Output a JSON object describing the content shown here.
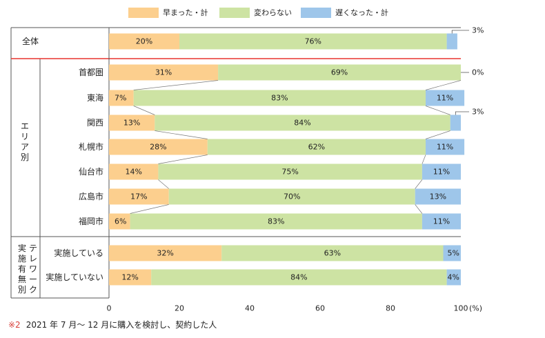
{
  "chart_data": {
    "type": "bar",
    "orientation": "horizontal",
    "stacked": true,
    "legend": {
      "placement": "top",
      "items": [
        {
          "name": "早まった・計",
          "color": "#fccf8e"
        },
        {
          "name": "変わらない",
          "color": "#cde3a3"
        },
        {
          "name": "遅くなった・計",
          "color": "#9ec6ea"
        }
      ]
    },
    "groups": [
      {
        "label": "",
        "rows": [
          "全体"
        ]
      },
      {
        "label": "エリア別",
        "rows": [
          "首都圏",
          "東海",
          "関西",
          "札幌市",
          "仙台市",
          "広島市",
          "福岡市"
        ]
      },
      {
        "label": "テレワーク実施有無別",
        "label_lines": [
          "テレワーク",
          "実施有無別"
        ],
        "rows": [
          "実施している",
          "実施していない"
        ]
      }
    ],
    "categories": [
      "全体",
      "首都圏",
      "東海",
      "関西",
      "札幌市",
      "仙台市",
      "広島市",
      "福岡市",
      "実施している",
      "実施していない"
    ],
    "series": [
      {
        "name": "早まった・計",
        "values": [
          20,
          31,
          7,
          13,
          28,
          14,
          17,
          6,
          32,
          12
        ]
      },
      {
        "name": "変わらない",
        "values": [
          76,
          69,
          83,
          84,
          62,
          75,
          70,
          83,
          63,
          84
        ]
      },
      {
        "name": "遅くなった・計",
        "values": [
          3,
          0,
          11,
          3,
          11,
          11,
          13,
          11,
          5,
          4
        ]
      }
    ],
    "data_labels": [
      [
        "20%",
        "76%",
        "3%"
      ],
      [
        "31%",
        "69%",
        "0%"
      ],
      [
        "7%",
        "83%",
        "11%"
      ],
      [
        "13%",
        "84%",
        "3%"
      ],
      [
        "28%",
        "62%",
        "11%"
      ],
      [
        "14%",
        "75%",
        "11%"
      ],
      [
        "17%",
        "70%",
        "13%"
      ],
      [
        "6%",
        "83%",
        "11%"
      ],
      [
        "32%",
        "63%",
        "5%"
      ],
      [
        "12%",
        "84%",
        "4%"
      ]
    ],
    "outside_labels": [
      0,
      1,
      3
    ],
    "xlim": [
      0,
      100
    ],
    "x_ticks": [
      0,
      20,
      40,
      60,
      80,
      100
    ],
    "x_unit": "(%)",
    "grid": false
  },
  "footnote": {
    "mark": "※2",
    "text": "2021 年 7 月～ 12 月に購入を検討し、契約した人"
  }
}
